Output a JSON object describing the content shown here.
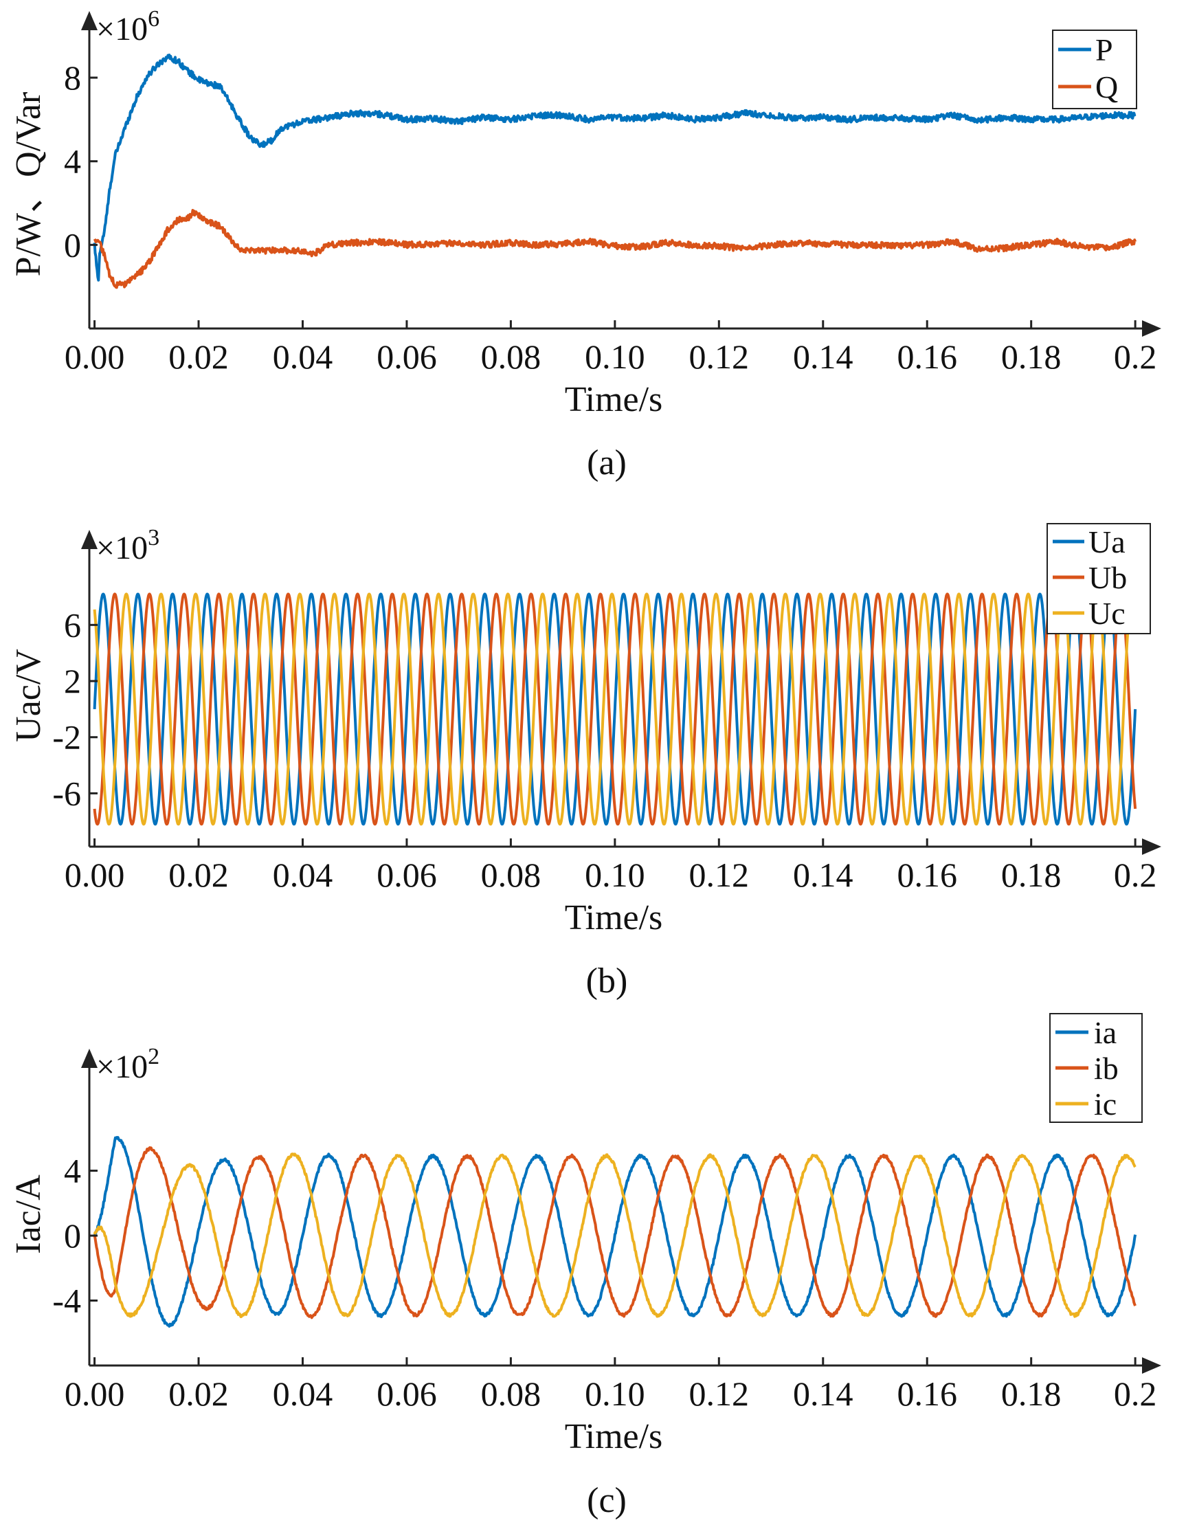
{
  "chart_data": [
    {
      "type": "line",
      "panel_label": "(a)",
      "xlabel": "Time/s",
      "ylabel": "P/W、Q/Var",
      "y_exponent": "×10",
      "y_exponent_power": "6",
      "xlim": [
        -0.001,
        0.205
      ],
      "ylim": [
        -4,
        10.4
      ],
      "x_ticks": [
        "0.00",
        "0.02",
        "0.04",
        "0.06",
        "0.08",
        "0.10",
        "0.12",
        "0.14",
        "0.16",
        "0.18",
        "0.2"
      ],
      "y_ticks": [
        "0",
        "4",
        "8"
      ],
      "legend": [
        "P",
        "Q"
      ],
      "series": [
        {
          "name": "P",
          "color": "#0072BD",
          "points": [
            [
              0,
              0
            ],
            [
              0.0007,
              -1.8
            ],
            [
              0.001,
              -0.4
            ],
            [
              0.002,
              0.8
            ],
            [
              0.003,
              2.8
            ],
            [
              0.004,
              4.3
            ],
            [
              0.006,
              5.7
            ],
            [
              0.008,
              7.0
            ],
            [
              0.01,
              8.0
            ],
            [
              0.012,
              8.6
            ],
            [
              0.014,
              9.0
            ],
            [
              0.016,
              8.8
            ],
            [
              0.018,
              8.3
            ],
            [
              0.02,
              7.9
            ],
            [
              0.022,
              7.7
            ],
            [
              0.024,
              7.6
            ],
            [
              0.026,
              6.8
            ],
            [
              0.028,
              5.9
            ],
            [
              0.03,
              5.1
            ],
            [
              0.032,
              4.75
            ],
            [
              0.034,
              5.0
            ],
            [
              0.036,
              5.6
            ],
            [
              0.04,
              5.9
            ],
            [
              0.045,
              6.1
            ],
            [
              0.05,
              6.3
            ],
            [
              0.055,
              6.25
            ],
            [
              0.06,
              6.0
            ],
            [
              0.065,
              6.05
            ],
            [
              0.07,
              5.9
            ],
            [
              0.075,
              6.1
            ],
            [
              0.08,
              6.0
            ],
            [
              0.085,
              6.2
            ],
            [
              0.09,
              6.2
            ],
            [
              0.095,
              6.0
            ],
            [
              0.1,
              6.1
            ],
            [
              0.105,
              6.05
            ],
            [
              0.11,
              6.2
            ],
            [
              0.115,
              6.0
            ],
            [
              0.12,
              6.1
            ],
            [
              0.125,
              6.3
            ],
            [
              0.13,
              6.2
            ],
            [
              0.135,
              6.05
            ],
            [
              0.14,
              6.1
            ],
            [
              0.145,
              6.0
            ],
            [
              0.15,
              6.1
            ],
            [
              0.155,
              6.05
            ],
            [
              0.16,
              6.0
            ],
            [
              0.165,
              6.2
            ],
            [
              0.17,
              5.95
            ],
            [
              0.175,
              6.1
            ],
            [
              0.18,
              6.0
            ],
            [
              0.185,
              6.0
            ],
            [
              0.19,
              6.1
            ],
            [
              0.195,
              6.2
            ],
            [
              0.2,
              6.2
            ]
          ]
        },
        {
          "name": "Q",
          "color": "#D95319",
          "points": [
            [
              0,
              0.3
            ],
            [
              0.001,
              0.1
            ],
            [
              0.002,
              -0.6
            ],
            [
              0.003,
              -1.5
            ],
            [
              0.004,
              -1.9
            ],
            [
              0.006,
              -1.9
            ],
            [
              0.008,
              -1.5
            ],
            [
              0.01,
              -1.0
            ],
            [
              0.012,
              -0.2
            ],
            [
              0.014,
              0.7
            ],
            [
              0.016,
              1.2
            ],
            [
              0.018,
              1.3
            ],
            [
              0.019,
              1.55
            ],
            [
              0.02,
              1.4
            ],
            [
              0.022,
              1.1
            ],
            [
              0.024,
              0.9
            ],
            [
              0.026,
              0.3
            ],
            [
              0.028,
              -0.2
            ],
            [
              0.03,
              -0.3
            ],
            [
              0.035,
              -0.25
            ],
            [
              0.04,
              -0.3
            ],
            [
              0.042,
              -0.45
            ],
            [
              0.045,
              0.0
            ],
            [
              0.05,
              0.1
            ],
            [
              0.055,
              0.15
            ],
            [
              0.06,
              0.0
            ],
            [
              0.065,
              0.05
            ],
            [
              0.07,
              0.1
            ],
            [
              0.075,
              0.0
            ],
            [
              0.08,
              0.1
            ],
            [
              0.085,
              0.0
            ],
            [
              0.09,
              0.05
            ],
            [
              0.095,
              0.15
            ],
            [
              0.1,
              -0.05
            ],
            [
              0.105,
              -0.1
            ],
            [
              0.11,
              0.1
            ],
            [
              0.115,
              0.0
            ],
            [
              0.12,
              -0.05
            ],
            [
              0.125,
              -0.2
            ],
            [
              0.13,
              0.0
            ],
            [
              0.135,
              0.1
            ],
            [
              0.14,
              0.05
            ],
            [
              0.145,
              0.0
            ],
            [
              0.15,
              0.0
            ],
            [
              0.155,
              -0.05
            ],
            [
              0.16,
              0.0
            ],
            [
              0.165,
              0.15
            ],
            [
              0.17,
              -0.2
            ],
            [
              0.175,
              -0.15
            ],
            [
              0.18,
              0.0
            ],
            [
              0.185,
              0.15
            ],
            [
              0.19,
              -0.1
            ],
            [
              0.195,
              -0.15
            ],
            [
              0.2,
              0.2
            ]
          ]
        }
      ]
    },
    {
      "type": "line",
      "panel_label": "(b)",
      "xlabel": "Time/s",
      "ylabel": "Uac/V",
      "y_exponent": "×10",
      "y_exponent_power": "3",
      "xlim": [
        -0.001,
        0.205
      ],
      "ylim": [
        -9.8,
        11.6
      ],
      "x_ticks": [
        "0.00",
        "0.02",
        "0.04",
        "0.06",
        "0.08",
        "0.10",
        "0.12",
        "0.14",
        "0.16",
        "0.18",
        "0.2"
      ],
      "y_ticks": [
        "-6",
        "-2",
        "2",
        "6"
      ],
      "legend": [
        "Ua",
        "Ub",
        "Uc"
      ],
      "waveform": {
        "amplitude": 8.2,
        "frequency_hz": 150,
        "t_end": 0.2
      },
      "series": [
        {
          "name": "Ua",
          "color": "#0072BD",
          "phase_deg": 0
        },
        {
          "name": "Ub",
          "color": "#D95319",
          "phase_deg": -120
        },
        {
          "name": "Uc",
          "color": "#EDB120",
          "phase_deg": 120
        }
      ]
    },
    {
      "type": "line",
      "panel_label": "(c)",
      "xlabel": "Time/s",
      "ylabel": "Iac/A",
      "y_exponent": "×10",
      "y_exponent_power": "2",
      "xlim": [
        -0.001,
        0.205
      ],
      "ylim": [
        -8.0,
        10.5
      ],
      "x_ticks": [
        "0.00",
        "0.02",
        "0.04",
        "0.06",
        "0.08",
        "0.10",
        "0.12",
        "0.14",
        "0.16",
        "0.18",
        "0.2"
      ],
      "y_ticks": [
        "-4",
        "0",
        "4"
      ],
      "legend": [
        "ia",
        "ib",
        "ic"
      ],
      "waveform": {
        "steady_amplitude": 4.9,
        "frequency_hz": 50,
        "t_end": 0.2
      },
      "series": [
        {
          "name": "ia",
          "color": "#0072BD",
          "phase_deg": 0
        },
        {
          "name": "ib",
          "color": "#D95319",
          "phase_deg": -120
        },
        {
          "name": "ic",
          "color": "#EDB120",
          "phase_deg": 120
        }
      ]
    }
  ]
}
